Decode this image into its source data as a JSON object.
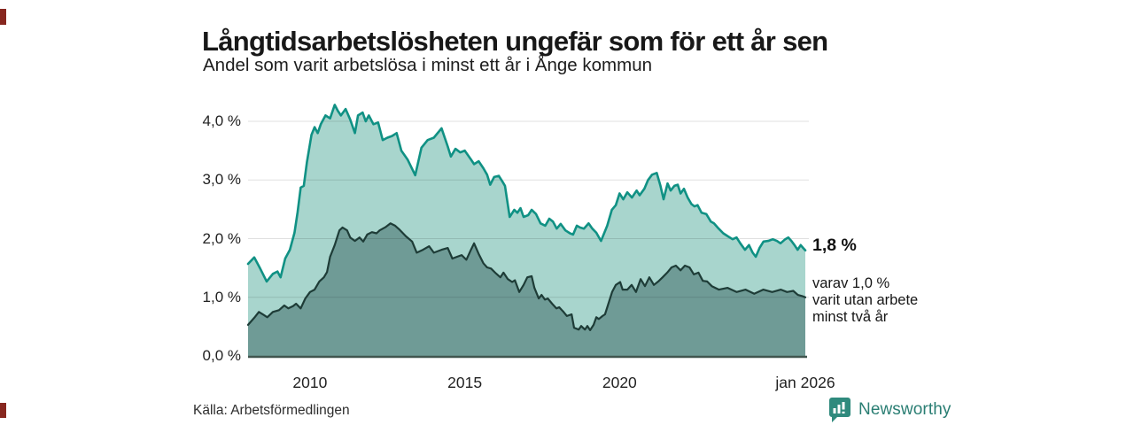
{
  "header": {
    "title": "Långtidsarbetslösheten ungefär som för ett år sen",
    "subtitle": "Andel som varit arbetslösa i minst ett år i Ånge kommun"
  },
  "chart_data": {
    "type": "area",
    "title": "Långtidsarbetslösheten ungefär som för ett år sen",
    "subtitle": "Andel som varit arbetslösa i minst ett år i Ånge kommun",
    "xlim": [
      2008.0,
      2026.0
    ],
    "ylim": [
      0,
      4.4
    ],
    "grid": true,
    "legend_position": "none",
    "x_ticks": [
      {
        "label": "2010",
        "year": 2010
      },
      {
        "label": "2015",
        "year": 2015
      },
      {
        "label": "2020",
        "year": 2020
      },
      {
        "label": "jan 2026",
        "year": 2026.0
      }
    ],
    "y_ticks": [
      {
        "label": "4,0 %",
        "value": 4.0
      },
      {
        "label": "3,0 %",
        "value": 3.0
      },
      {
        "label": "2,0 %",
        "value": 2.0
      },
      {
        "label": "1,0 %",
        "value": 1.0
      },
      {
        "label": "0,0 %",
        "value": 0.0
      }
    ],
    "series": [
      {
        "name": "arbetslösa minst ett år",
        "latest_value_pct": 1.8,
        "fill": "#a8d5cd",
        "line": "#109184",
        "line_width": 2.6,
        "points": [
          [
            2008.0,
            1.57
          ],
          [
            2008.2,
            1.68
          ],
          [
            2008.4,
            1.48
          ],
          [
            2008.6,
            1.27
          ],
          [
            2008.8,
            1.4
          ],
          [
            2008.95,
            1.44
          ],
          [
            2009.05,
            1.34
          ],
          [
            2009.2,
            1.66
          ],
          [
            2009.35,
            1.81
          ],
          [
            2009.5,
            2.1
          ],
          [
            2009.6,
            2.45
          ],
          [
            2009.7,
            2.87
          ],
          [
            2009.8,
            2.9
          ],
          [
            2009.9,
            3.3
          ],
          [
            2010.05,
            3.77
          ],
          [
            2010.15,
            3.9
          ],
          [
            2010.25,
            3.8
          ],
          [
            2010.35,
            3.95
          ],
          [
            2010.5,
            4.1
          ],
          [
            2010.65,
            4.05
          ],
          [
            2010.8,
            4.28
          ],
          [
            2010.9,
            4.18
          ],
          [
            2011.0,
            4.1
          ],
          [
            2011.15,
            4.21
          ],
          [
            2011.3,
            4.03
          ],
          [
            2011.45,
            3.8
          ],
          [
            2011.55,
            4.1
          ],
          [
            2011.7,
            4.15
          ],
          [
            2011.8,
            4.0
          ],
          [
            2011.9,
            4.1
          ],
          [
            2012.05,
            3.95
          ],
          [
            2012.2,
            3.98
          ],
          [
            2012.35,
            3.68
          ],
          [
            2012.5,
            3.72
          ],
          [
            2012.65,
            3.75
          ],
          [
            2012.8,
            3.8
          ],
          [
            2012.95,
            3.5
          ],
          [
            2013.15,
            3.35
          ],
          [
            2013.4,
            3.08
          ],
          [
            2013.6,
            3.55
          ],
          [
            2013.8,
            3.68
          ],
          [
            2014.0,
            3.72
          ],
          [
            2014.25,
            3.88
          ],
          [
            2014.45,
            3.57
          ],
          [
            2014.55,
            3.4
          ],
          [
            2014.7,
            3.53
          ],
          [
            2014.85,
            3.47
          ],
          [
            2015.0,
            3.5
          ],
          [
            2015.2,
            3.35
          ],
          [
            2015.3,
            3.27
          ],
          [
            2015.45,
            3.32
          ],
          [
            2015.6,
            3.2
          ],
          [
            2015.72,
            3.09
          ],
          [
            2015.82,
            2.92
          ],
          [
            2015.95,
            3.05
          ],
          [
            2016.1,
            3.07
          ],
          [
            2016.22,
            2.97
          ],
          [
            2016.3,
            2.9
          ],
          [
            2016.38,
            2.62
          ],
          [
            2016.45,
            2.37
          ],
          [
            2016.6,
            2.49
          ],
          [
            2016.7,
            2.44
          ],
          [
            2016.8,
            2.52
          ],
          [
            2016.9,
            2.37
          ],
          [
            2017.05,
            2.4
          ],
          [
            2017.16,
            2.49
          ],
          [
            2017.3,
            2.42
          ],
          [
            2017.45,
            2.26
          ],
          [
            2017.6,
            2.22
          ],
          [
            2017.73,
            2.34
          ],
          [
            2017.85,
            2.29
          ],
          [
            2017.97,
            2.17
          ],
          [
            2018.1,
            2.25
          ],
          [
            2018.25,
            2.14
          ],
          [
            2018.4,
            2.09
          ],
          [
            2018.5,
            2.07
          ],
          [
            2018.62,
            2.22
          ],
          [
            2018.72,
            2.19
          ],
          [
            2018.85,
            2.17
          ],
          [
            2019.0,
            2.26
          ],
          [
            2019.12,
            2.17
          ],
          [
            2019.25,
            2.1
          ],
          [
            2019.4,
            1.96
          ],
          [
            2019.6,
            2.22
          ],
          [
            2019.75,
            2.49
          ],
          [
            2019.88,
            2.57
          ],
          [
            2020.0,
            2.77
          ],
          [
            2020.12,
            2.67
          ],
          [
            2020.25,
            2.79
          ],
          [
            2020.4,
            2.7
          ],
          [
            2020.55,
            2.82
          ],
          [
            2020.65,
            2.74
          ],
          [
            2020.8,
            2.85
          ],
          [
            2020.92,
            3.0
          ],
          [
            2021.05,
            3.09
          ],
          [
            2021.2,
            3.12
          ],
          [
            2021.32,
            2.9
          ],
          [
            2021.42,
            2.67
          ],
          [
            2021.55,
            2.94
          ],
          [
            2021.65,
            2.82
          ],
          [
            2021.77,
            2.9
          ],
          [
            2021.88,
            2.92
          ],
          [
            2021.97,
            2.77
          ],
          [
            2022.08,
            2.85
          ],
          [
            2022.2,
            2.7
          ],
          [
            2022.32,
            2.59
          ],
          [
            2022.42,
            2.55
          ],
          [
            2022.52,
            2.57
          ],
          [
            2022.65,
            2.44
          ],
          [
            2022.8,
            2.42
          ],
          [
            2022.95,
            2.29
          ],
          [
            2023.05,
            2.26
          ],
          [
            2023.2,
            2.17
          ],
          [
            2023.35,
            2.09
          ],
          [
            2023.5,
            2.04
          ],
          [
            2023.65,
            1.99
          ],
          [
            2023.78,
            2.02
          ],
          [
            2023.9,
            1.92
          ],
          [
            2024.05,
            1.81
          ],
          [
            2024.18,
            1.89
          ],
          [
            2024.3,
            1.76
          ],
          [
            2024.4,
            1.69
          ],
          [
            2024.52,
            1.84
          ],
          [
            2024.65,
            1.95
          ],
          [
            2024.8,
            1.96
          ],
          [
            2024.95,
            1.99
          ],
          [
            2025.08,
            1.96
          ],
          [
            2025.2,
            1.92
          ],
          [
            2025.35,
            1.99
          ],
          [
            2025.45,
            2.02
          ],
          [
            2025.55,
            1.96
          ],
          [
            2025.65,
            1.89
          ],
          [
            2025.75,
            1.81
          ],
          [
            2025.85,
            1.89
          ],
          [
            2025.93,
            1.84
          ],
          [
            2026.0,
            1.8
          ]
        ]
      },
      {
        "name": "varav arbetslösa minst två år",
        "latest_value_pct": 1.0,
        "fill": "#6f9b96",
        "line": "#1e3c37",
        "line_width": 2.2,
        "points": [
          [
            2008.0,
            0.53
          ],
          [
            2008.2,
            0.65
          ],
          [
            2008.35,
            0.75
          ],
          [
            2008.5,
            0.7
          ],
          [
            2008.62,
            0.66
          ],
          [
            2008.8,
            0.75
          ],
          [
            2009.0,
            0.78
          ],
          [
            2009.17,
            0.86
          ],
          [
            2009.3,
            0.81
          ],
          [
            2009.45,
            0.85
          ],
          [
            2009.55,
            0.89
          ],
          [
            2009.7,
            0.81
          ],
          [
            2009.85,
            0.98
          ],
          [
            2010.0,
            1.09
          ],
          [
            2010.15,
            1.13
          ],
          [
            2010.3,
            1.27
          ],
          [
            2010.45,
            1.34
          ],
          [
            2010.55,
            1.43
          ],
          [
            2010.65,
            1.69
          ],
          [
            2010.8,
            1.89
          ],
          [
            2010.95,
            2.14
          ],
          [
            2011.05,
            2.19
          ],
          [
            2011.2,
            2.14
          ],
          [
            2011.3,
            2.02
          ],
          [
            2011.45,
            1.96
          ],
          [
            2011.6,
            2.02
          ],
          [
            2011.72,
            1.95
          ],
          [
            2011.85,
            2.07
          ],
          [
            2012.0,
            2.11
          ],
          [
            2012.15,
            2.09
          ],
          [
            2012.25,
            2.14
          ],
          [
            2012.45,
            2.2
          ],
          [
            2012.6,
            2.26
          ],
          [
            2012.75,
            2.22
          ],
          [
            2012.9,
            2.15
          ],
          [
            2013.1,
            2.04
          ],
          [
            2013.3,
            1.95
          ],
          [
            2013.45,
            1.76
          ],
          [
            2013.65,
            1.81
          ],
          [
            2013.85,
            1.87
          ],
          [
            2014.0,
            1.76
          ],
          [
            2014.25,
            1.81
          ],
          [
            2014.45,
            1.84
          ],
          [
            2014.6,
            1.66
          ],
          [
            2014.75,
            1.69
          ],
          [
            2014.9,
            1.72
          ],
          [
            2015.05,
            1.64
          ],
          [
            2015.2,
            1.81
          ],
          [
            2015.3,
            1.92
          ],
          [
            2015.45,
            1.74
          ],
          [
            2015.6,
            1.58
          ],
          [
            2015.72,
            1.51
          ],
          [
            2015.85,
            1.49
          ],
          [
            2016.0,
            1.41
          ],
          [
            2016.15,
            1.34
          ],
          [
            2016.25,
            1.42
          ],
          [
            2016.39,
            1.31
          ],
          [
            2016.53,
            1.26
          ],
          [
            2016.62,
            1.29
          ],
          [
            2016.76,
            1.09
          ],
          [
            2016.9,
            1.21
          ],
          [
            2017.02,
            1.34
          ],
          [
            2017.16,
            1.36
          ],
          [
            2017.25,
            1.16
          ],
          [
            2017.39,
            0.98
          ],
          [
            2017.48,
            1.04
          ],
          [
            2017.59,
            0.96
          ],
          [
            2017.68,
            0.98
          ],
          [
            2017.82,
            0.89
          ],
          [
            2017.96,
            0.81
          ],
          [
            2018.05,
            0.83
          ],
          [
            2018.19,
            0.75
          ],
          [
            2018.3,
            0.68
          ],
          [
            2018.45,
            0.71
          ],
          [
            2018.53,
            0.48
          ],
          [
            2018.68,
            0.45
          ],
          [
            2018.76,
            0.51
          ],
          [
            2018.88,
            0.45
          ],
          [
            2018.96,
            0.51
          ],
          [
            2019.05,
            0.44
          ],
          [
            2019.16,
            0.53
          ],
          [
            2019.25,
            0.66
          ],
          [
            2019.33,
            0.63
          ],
          [
            2019.45,
            0.68
          ],
          [
            2019.53,
            0.71
          ],
          [
            2019.62,
            0.86
          ],
          [
            2019.76,
            1.09
          ],
          [
            2019.88,
            1.21
          ],
          [
            2020.02,
            1.26
          ],
          [
            2020.1,
            1.13
          ],
          [
            2020.25,
            1.13
          ],
          [
            2020.39,
            1.21
          ],
          [
            2020.53,
            1.09
          ],
          [
            2020.68,
            1.31
          ],
          [
            2020.82,
            1.19
          ],
          [
            2020.96,
            1.34
          ],
          [
            2021.11,
            1.21
          ],
          [
            2021.25,
            1.27
          ],
          [
            2021.39,
            1.34
          ],
          [
            2021.54,
            1.42
          ],
          [
            2021.68,
            1.51
          ],
          [
            2021.82,
            1.54
          ],
          [
            2021.97,
            1.46
          ],
          [
            2022.11,
            1.54
          ],
          [
            2022.26,
            1.51
          ],
          [
            2022.4,
            1.39
          ],
          [
            2022.55,
            1.42
          ],
          [
            2022.69,
            1.28
          ],
          [
            2022.83,
            1.27
          ],
          [
            2022.98,
            1.19
          ],
          [
            2023.21,
            1.13
          ],
          [
            2023.49,
            1.16
          ],
          [
            2023.78,
            1.09
          ],
          [
            2024.07,
            1.13
          ],
          [
            2024.35,
            1.06
          ],
          [
            2024.64,
            1.13
          ],
          [
            2024.93,
            1.09
          ],
          [
            2025.21,
            1.13
          ],
          [
            2025.41,
            1.09
          ],
          [
            2025.61,
            1.11
          ],
          [
            2025.76,
            1.04
          ],
          [
            2025.9,
            1.02
          ],
          [
            2026.0,
            1.0
          ]
        ]
      }
    ],
    "end_labels": {
      "primary": "1,8 %",
      "secondary_lines": [
        "varav 1,0 %",
        "varit utan arbete",
        "minst två år"
      ]
    }
  },
  "colors": {
    "area_light": "#a8d5cd",
    "area_dark": "#6f9b96",
    "line_teal": "#109184",
    "line_dark": "#1e3c37",
    "axis": "#41564f",
    "grid": "rgba(0,0,0,0.12)",
    "brand_teal": "#2a7e73",
    "crop_mark_red": "#87271f"
  },
  "footer": {
    "source": "Källa: Arbetsförmedlingen",
    "brand": "Newsworthy"
  }
}
